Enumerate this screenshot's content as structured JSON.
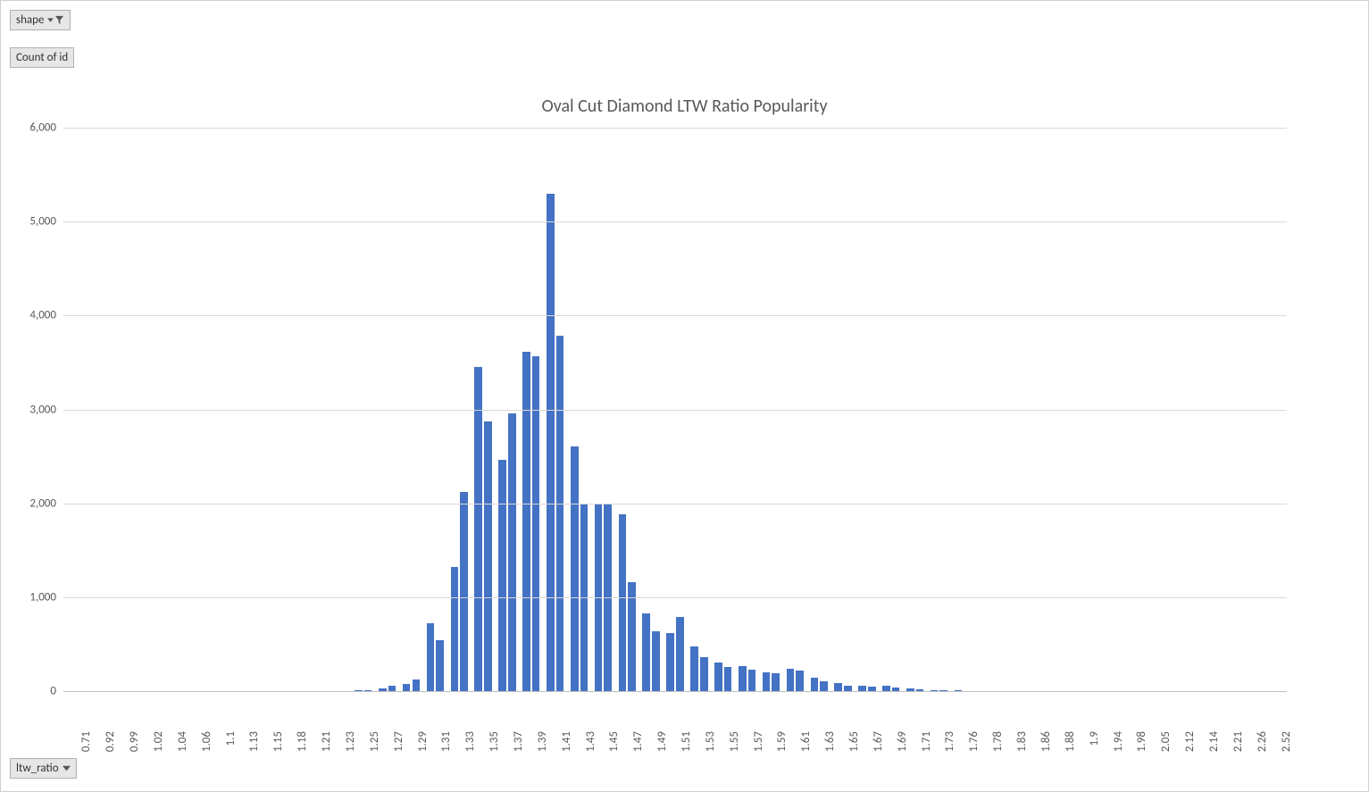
{
  "pivot": {
    "shape_label": "shape",
    "count_label": "Count of id",
    "ltw_label": "ltw_ratio"
  },
  "chart": {
    "type": "bar",
    "title": "Oval Cut Diamond LTW Ratio Popularity",
    "title_fontsize": 20,
    "title_color": "#595959",
    "bar_color": "#4472c4",
    "background_color": "#ffffff",
    "grid_color": "#d9d9d9",
    "axis_color": "#bfbfbf",
    "tick_label_color": "#595959",
    "tick_label_fontsize": 13,
    "ylim": [
      0,
      6000
    ],
    "ytick_step": 1000,
    "y_tick_labels": [
      "0",
      "1,000",
      "2,000",
      "3,000",
      "4,000",
      "5,000",
      "6,000"
    ],
    "bar_width_ratio": 0.45,
    "categories": [
      "0.71",
      "0.92",
      "0.99",
      "1.02",
      "1.04",
      "1.06",
      "1.1",
      "1.13",
      "1.15",
      "1.18",
      "1.21",
      "1.23",
      "1.25",
      "1.27",
      "1.29",
      "1.31",
      "1.33",
      "1.35",
      "1.37",
      "1.39",
      "1.41",
      "1.43",
      "1.45",
      "1.47",
      "1.49",
      "1.51",
      "1.53",
      "1.55",
      "1.57",
      "1.59",
      "1.61",
      "1.63",
      "1.65",
      "1.67",
      "1.69",
      "1.71",
      "1.73",
      "1.76",
      "1.78",
      "1.83",
      "1.86",
      "1.88",
      "1.9",
      "1.94",
      "1.98",
      "2.05",
      "2.12",
      "2.14",
      "2.21",
      "2.26",
      "2.52"
    ],
    "values_pairs": [
      [
        0,
        0
      ],
      [
        0,
        0
      ],
      [
        0,
        0
      ],
      [
        0,
        0
      ],
      [
        0,
        0
      ],
      [
        0,
        0
      ],
      [
        0,
        0
      ],
      [
        0,
        0
      ],
      [
        0,
        0
      ],
      [
        0,
        0
      ],
      [
        0,
        0
      ],
      [
        0,
        0
      ],
      [
        10,
        10
      ],
      [
        30,
        60
      ],
      [
        80,
        120
      ],
      [
        720,
        540
      ],
      [
        1320,
        2120
      ],
      [
        3450,
        2870
      ],
      [
        2460,
        2960
      ],
      [
        3610,
        3570
      ],
      [
        5300,
        3780
      ],
      [
        2610,
        2000
      ],
      [
        1990,
        1990
      ],
      [
        1880,
        1160
      ],
      [
        830,
        640
      ],
      [
        620,
        790
      ],
      [
        480,
        360
      ],
      [
        300,
        260
      ],
      [
        270,
        230
      ],
      [
        200,
        190
      ],
      [
        240,
        220
      ],
      [
        140,
        100
      ],
      [
        90,
        60
      ],
      [
        60,
        50
      ],
      [
        60,
        40
      ],
      [
        30,
        20
      ],
      [
        10,
        5
      ],
      [
        5,
        0
      ],
      [
        0,
        0
      ],
      [
        0,
        0
      ],
      [
        0,
        0
      ],
      [
        0,
        0
      ],
      [
        0,
        0
      ],
      [
        0,
        0
      ],
      [
        0,
        0
      ],
      [
        0,
        0
      ],
      [
        0,
        0
      ],
      [
        0,
        0
      ],
      [
        0,
        0
      ],
      [
        0,
        0
      ],
      [
        0,
        0
      ]
    ]
  }
}
